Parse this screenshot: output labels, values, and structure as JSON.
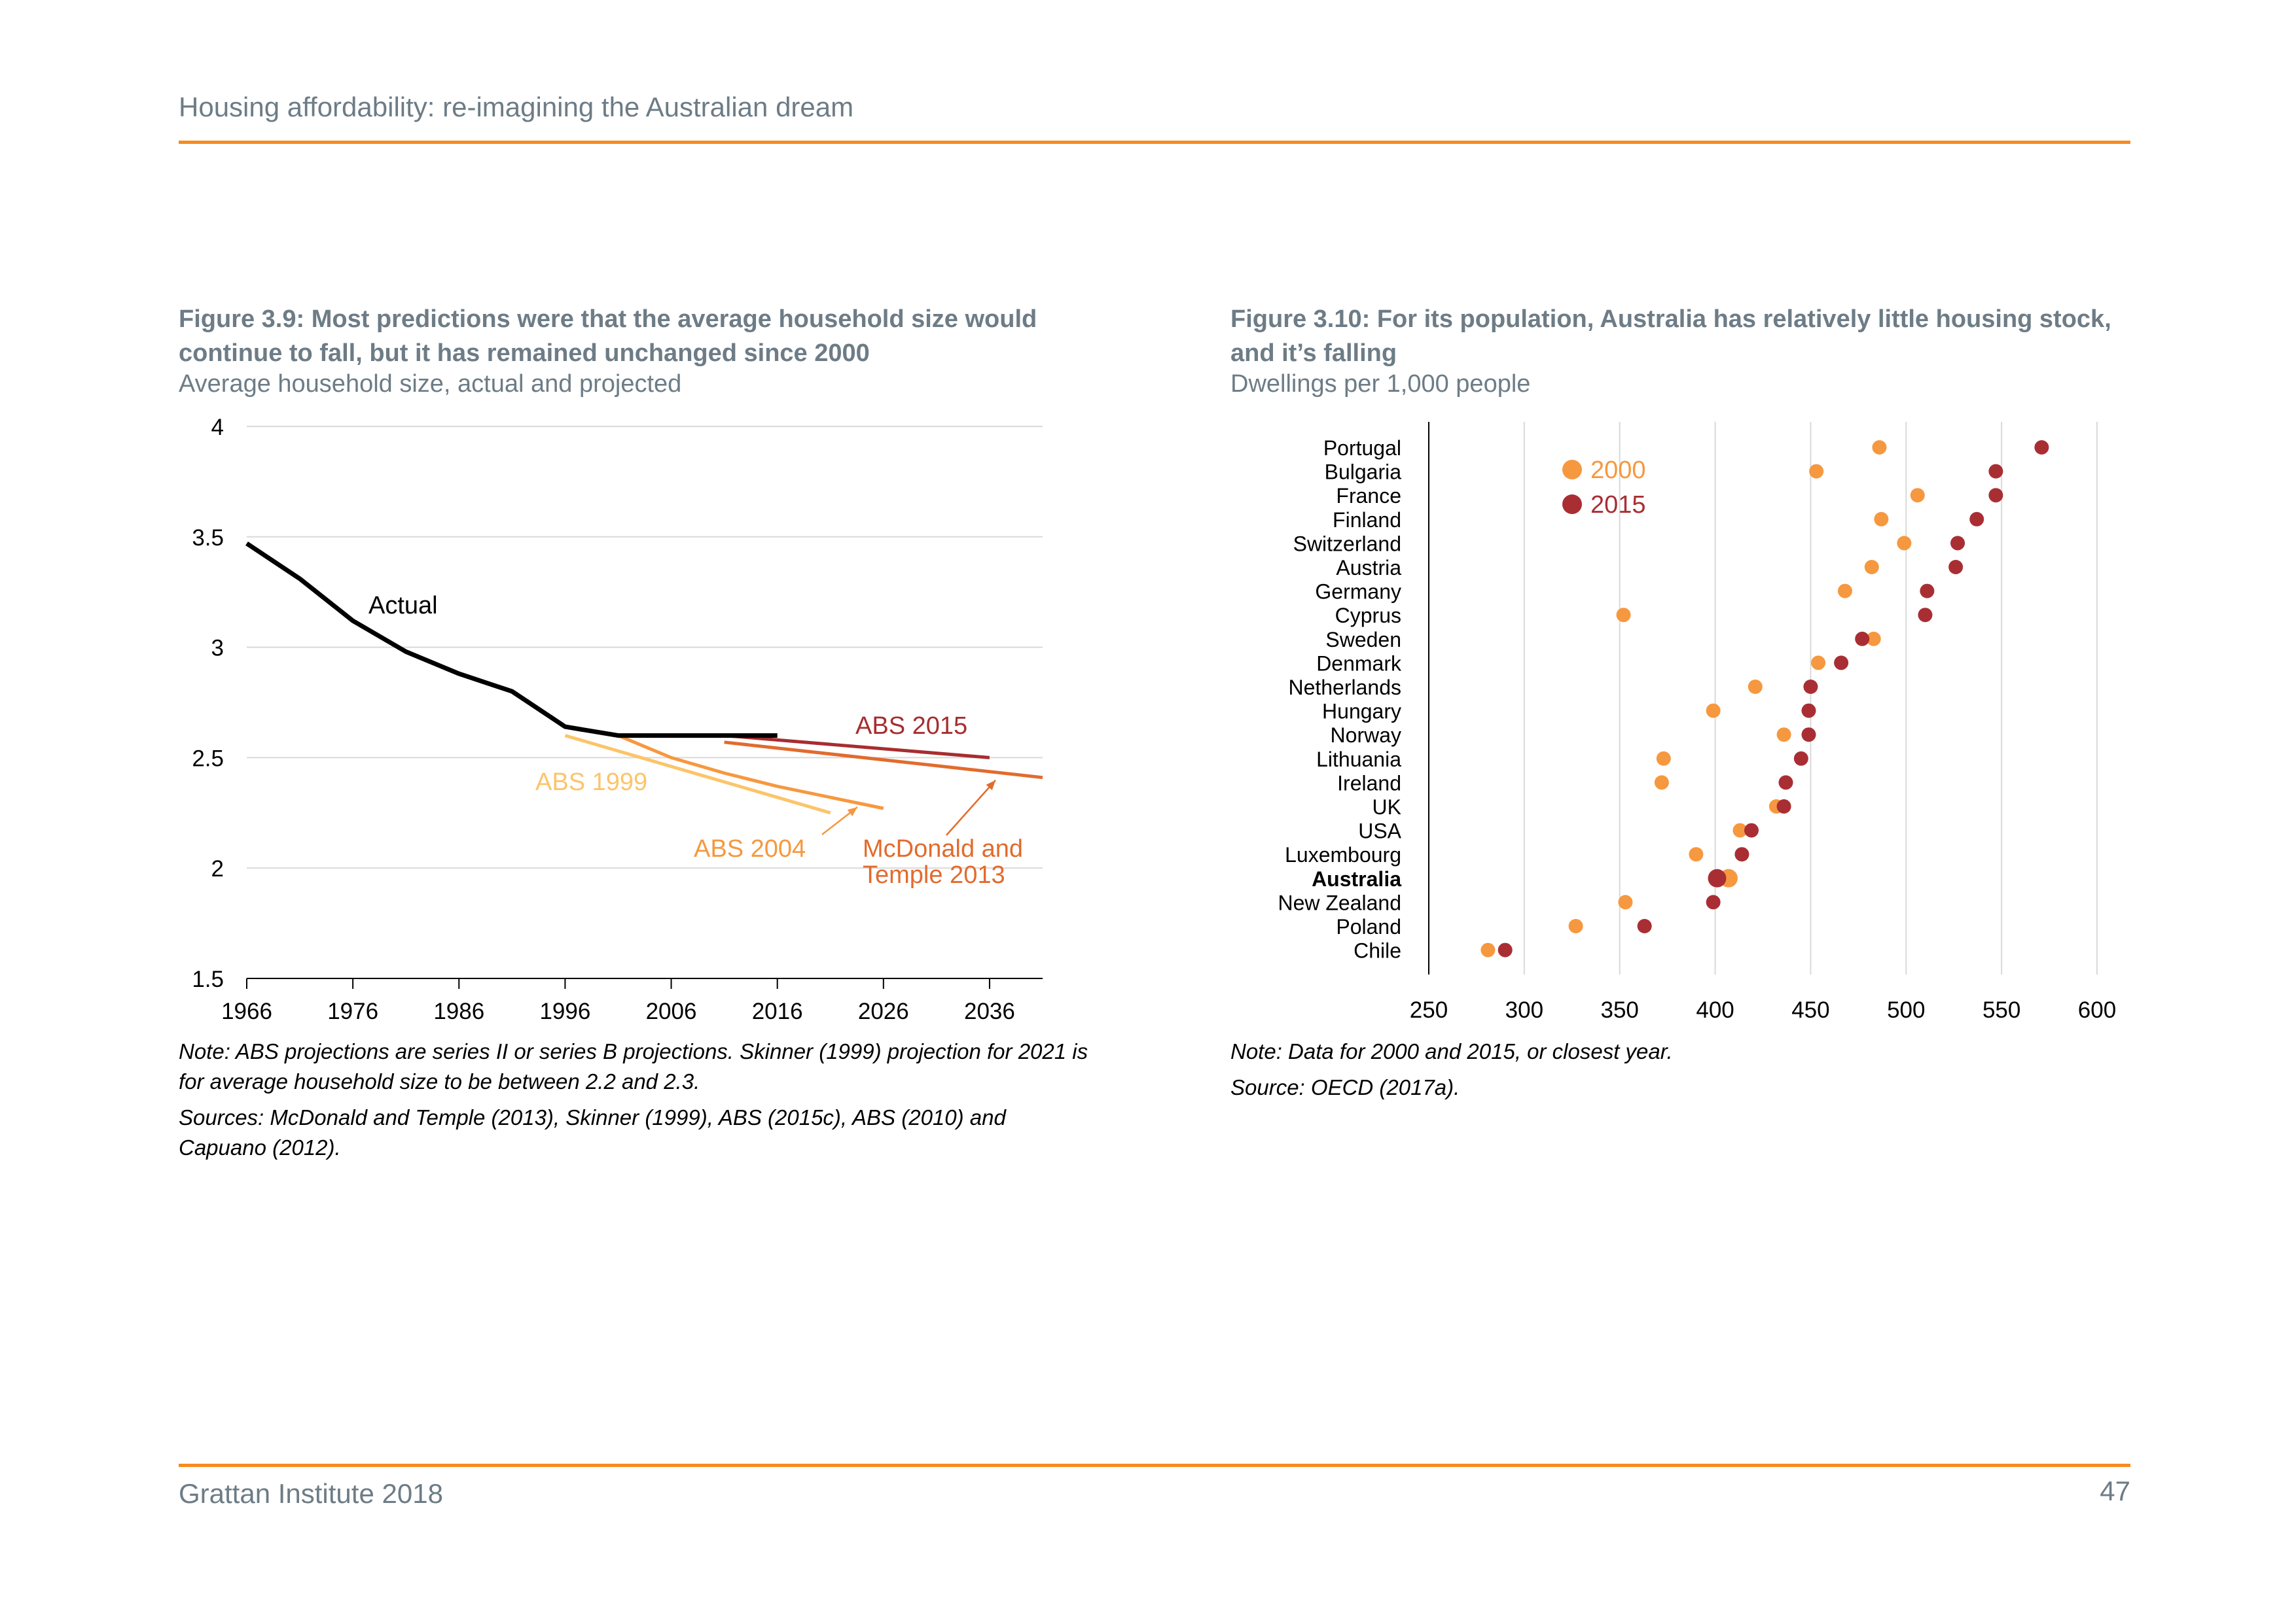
{
  "header": {
    "running_title": "Housing affordability: re-imagining the Australian dream"
  },
  "footer": {
    "publisher": "Grattan Institute 2018",
    "page_number": "47"
  },
  "colors": {
    "accent_rule": "#f68b1f",
    "gridline": "#d9d9d9",
    "actual": "#000000",
    "abs1999": "#fcc46a",
    "abs2004": "#f6983f",
    "mcdonald": "#e26b2d",
    "abs2015": "#a72d2f",
    "dot2000": "#f6983f",
    "dot2015": "#a92e34"
  },
  "figures": [
    {
      "title": "Figure 3.9: Most predictions were that the average household size would continue to fall, but it has remained unchanged since 2000",
      "subtitle": "Average household size, actual and projected",
      "note": "Note: ABS projections are series II or series B projections. Skinner (1999) projection for 2021 is for average household size to be between 2.2 and 2.3.",
      "sources": "Sources: McDonald and Temple (2013), Skinner (1999), ABS (2015c), ABS (2010) and Capuano (2012)."
    },
    {
      "title": "Figure 3.10: For its population, Australia has relatively little housing stock, and it’s falling",
      "subtitle": "Dwellings per 1,000 people",
      "note": "Note: Data for 2000 and 2015, or closest year.",
      "sources": "Source: OECD (2017a)."
    }
  ],
  "chart_data": [
    {
      "type": "line",
      "xlim": [
        1966,
        2041
      ],
      "ylim": [
        1.5,
        4
      ],
      "x_ticks": [
        "1966",
        "1976",
        "1986",
        "1996",
        "2006",
        "2016",
        "2026",
        "2036"
      ],
      "y_ticks": [
        "4",
        "3.5",
        "3",
        "2.5",
        "2",
        "1.5"
      ],
      "grid": "horizontal",
      "series": [
        {
          "name": "Actual",
          "x": [
            1966,
            1971,
            1976,
            1981,
            1986,
            1991,
            1996,
            2001,
            2006,
            2011,
            2016
          ],
          "y": [
            3.47,
            3.31,
            3.12,
            2.98,
            2.88,
            2.8,
            2.64,
            2.6,
            2.6,
            2.6,
            2.6
          ]
        },
        {
          "name": "ABS 1999",
          "x": [
            1996,
            2021
          ],
          "y": [
            2.6,
            2.25
          ]
        },
        {
          "name": "ABS 2004",
          "x": [
            2001,
            2006,
            2011,
            2016,
            2026
          ],
          "y": [
            2.6,
            2.5,
            2.43,
            2.37,
            2.27
          ]
        },
        {
          "name": "McDonald and Temple 2013",
          "x": [
            2011,
            2041
          ],
          "y": [
            2.57,
            2.41
          ]
        },
        {
          "name": "ABS 2015",
          "x": [
            2011,
            2036
          ],
          "y": [
            2.6,
            2.5
          ]
        }
      ],
      "labels": {
        "actual": "Actual",
        "abs1999": "ABS 1999",
        "abs2004": "ABS 2004",
        "mcdonald_line1": "McDonald and",
        "mcdonald_line2": "Temple 2013",
        "abs2015": "ABS 2015"
      }
    },
    {
      "type": "scatter",
      "xlim": [
        250,
        600
      ],
      "x_ticks": [
        "250",
        "300",
        "350",
        "400",
        "450",
        "500",
        "550",
        "600"
      ],
      "grid": "vertical",
      "legend": {
        "placement": "top-left",
        "entries": [
          "2000",
          "2015"
        ]
      },
      "highlight": "Australia",
      "categories": [
        "Portugal",
        "Bulgaria",
        "France",
        "Finland",
        "Switzerland",
        "Austria",
        "Germany",
        "Cyprus",
        "Sweden",
        "Denmark",
        "Netherlands",
        "Hungary",
        "Norway",
        "Lithuania",
        "Ireland",
        "UK",
        "USA",
        "Luxembourg",
        "Australia",
        "New Zealand",
        "Poland",
        "Chile"
      ],
      "series": [
        {
          "name": "2000",
          "values": [
            486,
            453,
            506,
            487,
            499,
            482,
            468,
            352,
            483,
            454,
            421,
            399,
            436,
            373,
            372,
            432,
            413,
            390,
            407,
            353,
            327,
            281
          ]
        },
        {
          "name": "2015",
          "values": [
            571,
            547,
            547,
            537,
            527,
            526,
            511,
            510,
            477,
            466,
            450,
            449,
            449,
            445,
            437,
            436,
            419,
            414,
            401,
            399,
            363,
            290
          ]
        }
      ]
    }
  ]
}
